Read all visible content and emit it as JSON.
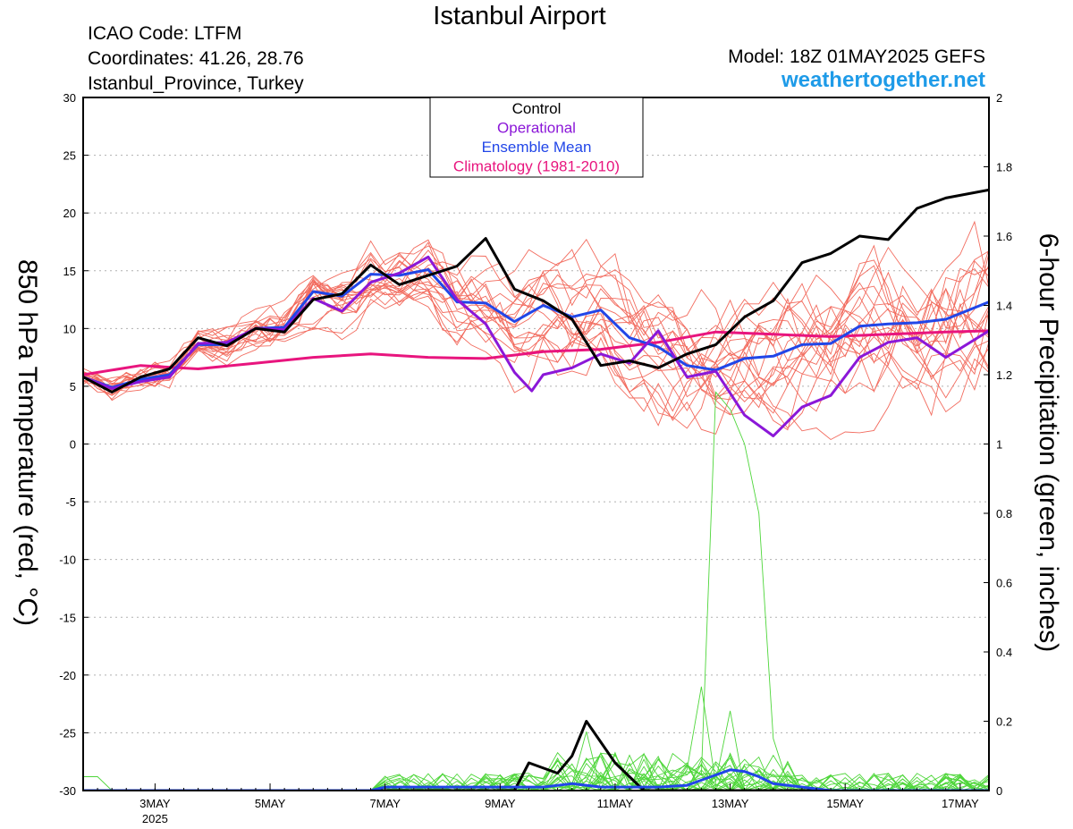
{
  "header": {
    "title": "Istanbul Airport",
    "icao": "ICAO Code: LTFM",
    "coordinates": "Coordinates: 41.26, 28.76",
    "province": "Istanbul_Province, Turkey",
    "model": "Model: 18Z 01MAY2025 GEFS",
    "site": "weathertogether.net"
  },
  "chart_data": {
    "type": "line",
    "title": "Istanbul Airport",
    "ylabel_left": "850 hPa Temperature (red, °C)",
    "ylabel_right": "6-hour Precipitation (green, inches)",
    "x_unit": "days since 01MAY2025 18Z",
    "x_range": [
      0.0,
      15.75
    ],
    "xticks": [
      {
        "x": 1.25,
        "label": "3MAY",
        "sub": "2025"
      },
      {
        "x": 3.25,
        "label": "5MAY",
        "sub": ""
      },
      {
        "x": 5.25,
        "label": "7MAY",
        "sub": ""
      },
      {
        "x": 7.25,
        "label": "9MAY",
        "sub": ""
      },
      {
        "x": 9.25,
        "label": "11MAY",
        "sub": ""
      },
      {
        "x": 11.25,
        "label": "13MAY",
        "sub": ""
      },
      {
        "x": 13.25,
        "label": "15MAY",
        "sub": ""
      },
      {
        "x": 15.25,
        "label": "17MAY",
        "sub": ""
      }
    ],
    "y_left": {
      "min": -30,
      "max": 30,
      "ticks": [
        30,
        25,
        20,
        15,
        10,
        5,
        0,
        -5,
        -10,
        -15,
        -20,
        -25,
        -30
      ]
    },
    "y_right": {
      "min": 0,
      "max": 2,
      "ticks": [
        "2",
        "1.8",
        "1.6",
        "1.4",
        "1.2",
        "1",
        "0.8",
        "0.6",
        "0.4",
        "0.2",
        "0"
      ]
    },
    "grid": "dotted horizontal",
    "legend": {
      "position": "top-center",
      "entries": [
        {
          "label": "Control",
          "color": "#000000"
        },
        {
          "label": "Operational",
          "color": "#8b17d8"
        },
        {
          "label": "Ensemble Mean",
          "color": "#2146e8"
        },
        {
          "label": "Climatology (1981-2010)",
          "color": "#e8157e"
        }
      ]
    },
    "colors": {
      "members_temp": "#f26b5e",
      "members_precip": "#4ed63a",
      "control": "#000000",
      "operational": "#8b17d8",
      "mean": "#2146e8",
      "climatology": "#e8157e"
    },
    "series_temp": [
      {
        "name": "Control",
        "points": [
          [
            0,
            5.8
          ],
          [
            0.5,
            4.5
          ],
          [
            1,
            5.8
          ],
          [
            1.5,
            6.5
          ],
          [
            2,
            9.2
          ],
          [
            2.5,
            8.5
          ],
          [
            3,
            10
          ],
          [
            3.5,
            9.7
          ],
          [
            4,
            12.5
          ],
          [
            4.5,
            13
          ],
          [
            5,
            15.5
          ],
          [
            5.5,
            13.8
          ],
          [
            6,
            14.6
          ],
          [
            6.5,
            15.4
          ],
          [
            7,
            17.8
          ],
          [
            7.5,
            13.4
          ],
          [
            8,
            12.4
          ],
          [
            8.5,
            10.8
          ],
          [
            9,
            6.8
          ],
          [
            9.5,
            7.2
          ],
          [
            10,
            6.6
          ],
          [
            10.5,
            7.8
          ],
          [
            11,
            8.6
          ],
          [
            11.5,
            11
          ],
          [
            12,
            12.4
          ],
          [
            12.5,
            15.7
          ],
          [
            13,
            16.5
          ],
          [
            13.5,
            18
          ],
          [
            14,
            17.7
          ],
          [
            14.5,
            20.4
          ],
          [
            15,
            21.3
          ],
          [
            15.75,
            22
          ]
        ]
      },
      {
        "name": "Operational",
        "points": [
          [
            0,
            5.8
          ],
          [
            0.5,
            4.8
          ],
          [
            1,
            5.4
          ],
          [
            1.5,
            5.8
          ],
          [
            2,
            8.7
          ],
          [
            2.5,
            8.8
          ],
          [
            3,
            10
          ],
          [
            3.5,
            9.9
          ],
          [
            4,
            12.6
          ],
          [
            4.5,
            11.5
          ],
          [
            5,
            14
          ],
          [
            5.5,
            14.8
          ],
          [
            6,
            16.2
          ],
          [
            6.5,
            12.5
          ],
          [
            7,
            10.4
          ],
          [
            7.5,
            6.2
          ],
          [
            7.8,
            4.6
          ],
          [
            8,
            6
          ],
          [
            8.5,
            6.6
          ],
          [
            9,
            7.8
          ],
          [
            9.5,
            7
          ],
          [
            10,
            9.8
          ],
          [
            10.5,
            5.8
          ],
          [
            11,
            6.3
          ],
          [
            11.5,
            2.5
          ],
          [
            12,
            0.7
          ],
          [
            12.5,
            3.2
          ],
          [
            13,
            4.2
          ],
          [
            13.5,
            7.5
          ],
          [
            14,
            8.8
          ],
          [
            14.5,
            9.2
          ],
          [
            15,
            7.5
          ],
          [
            15.75,
            9.8
          ]
        ]
      },
      {
        "name": "Ensemble Mean",
        "points": [
          [
            0,
            5.8
          ],
          [
            0.5,
            4.9
          ],
          [
            1,
            5.6
          ],
          [
            1.5,
            6
          ],
          [
            2,
            8.6
          ],
          [
            2.5,
            8.6
          ],
          [
            3,
            10
          ],
          [
            3.5,
            10.1
          ],
          [
            4,
            13.2
          ],
          [
            4.5,
            12.8
          ],
          [
            5,
            14.7
          ],
          [
            5.5,
            14.6
          ],
          [
            6,
            15.1
          ],
          [
            6.5,
            12.3
          ],
          [
            7,
            12.2
          ],
          [
            7.5,
            10.6
          ],
          [
            8,
            12
          ],
          [
            8.5,
            11
          ],
          [
            9,
            11.6
          ],
          [
            9.5,
            9.2
          ],
          [
            10,
            8.4
          ],
          [
            10.5,
            6.8
          ],
          [
            11,
            6.4
          ],
          [
            11.5,
            7.4
          ],
          [
            12,
            7.6
          ],
          [
            12.5,
            8.6
          ],
          [
            13,
            8.7
          ],
          [
            13.5,
            10.2
          ],
          [
            14,
            10.4
          ],
          [
            14.5,
            10.5
          ],
          [
            15,
            10.8
          ],
          [
            15.75,
            12.3
          ]
        ]
      },
      {
        "name": "Climatology (1981-2010)",
        "points": [
          [
            0,
            6
          ],
          [
            1,
            6.8
          ],
          [
            2,
            6.5
          ],
          [
            3,
            7
          ],
          [
            4,
            7.5
          ],
          [
            5,
            7.8
          ],
          [
            6,
            7.5
          ],
          [
            7,
            7.4
          ],
          [
            8,
            8
          ],
          [
            9,
            8.2
          ],
          [
            10,
            8.8
          ],
          [
            11,
            9.7
          ],
          [
            12,
            9.5
          ],
          [
            13,
            9.3
          ],
          [
            14,
            9.5
          ],
          [
            15,
            9.7
          ],
          [
            15.75,
            9.8
          ]
        ]
      }
    ],
    "series_precip": [
      {
        "name": "Control",
        "points": [
          [
            0,
            0
          ],
          [
            7.5,
            0
          ],
          [
            7.75,
            0.08
          ],
          [
            8.25,
            0.05
          ],
          [
            8.5,
            0.1
          ],
          [
            8.75,
            0.2
          ],
          [
            9.25,
            0.08
          ],
          [
            9.5,
            0.04
          ],
          [
            9.75,
            0
          ],
          [
            15.75,
            0
          ]
        ]
      },
      {
        "name": "Ensemble Mean",
        "points": [
          [
            0,
            0
          ],
          [
            5,
            0
          ],
          [
            5.25,
            0.01
          ],
          [
            8,
            0.01
          ],
          [
            8.5,
            0.02
          ],
          [
            9,
            0.01
          ],
          [
            10,
            0.01
          ],
          [
            10.5,
            0.015
          ],
          [
            10.75,
            0.03
          ],
          [
            11.25,
            0.06
          ],
          [
            11.5,
            0.055
          ],
          [
            11.75,
            0.04
          ],
          [
            12,
            0.02
          ],
          [
            12.5,
            0.01
          ],
          [
            13,
            0
          ],
          [
            15.75,
            0
          ]
        ]
      }
    ]
  }
}
